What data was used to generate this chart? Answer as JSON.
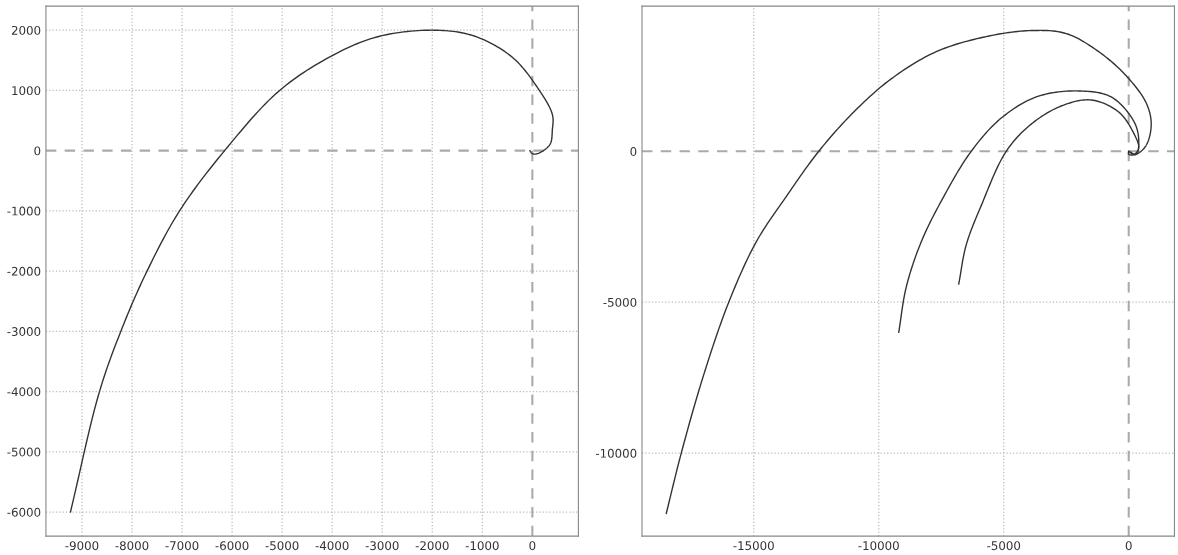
{
  "chart_data": [
    {
      "type": "line",
      "xlim": [
        -9720,
        920
      ],
      "ylim": [
        -6400,
        2400
      ],
      "xticks": [
        -9000,
        -8000,
        -7000,
        -6000,
        -5000,
        -4000,
        -3000,
        -2000,
        -1000,
        0
      ],
      "yticks": [
        -6000,
        -5000,
        -4000,
        -3000,
        -2000,
        -1000,
        0,
        1000,
        2000
      ],
      "grid": true,
      "series": [
        {
          "color": "#333333",
          "x": [
            -9230,
            -8650,
            -8200,
            -7700,
            -7050,
            -6150,
            -5050,
            -3950,
            -3050,
            -1950,
            -1150,
            -400,
            100,
            400,
            400,
            350,
            100,
            0,
            -50
          ],
          "values": [
            -6000,
            -4000,
            -2950,
            -2000,
            -1000,
            0,
            1000,
            1600,
            1900,
            2000,
            1900,
            1550,
            1050,
            600,
            350,
            100,
            -50,
            -50,
            0
          ]
        }
      ]
    },
    {
      "type": "line",
      "xlim": [
        -19470,
        1830
      ],
      "ylim": [
        -12750,
        4810
      ],
      "xticks": [
        -15000,
        -10000,
        -5000,
        0
      ],
      "yticks": [
        -10000,
        -5000,
        0
      ],
      "grid": true,
      "series": [
        {
          "color": "#333333",
          "x": [
            -18500,
            -17900,
            -17000,
            -16000,
            -14900,
            -13700,
            -12400,
            -11000,
            -9500,
            -7700,
            -5700,
            -3900,
            -2500,
            -1200,
            -100,
            700,
            900,
            700,
            300,
            0,
            0
          ],
          "values": [
            -12000,
            -10000,
            -7400,
            -5000,
            -3000,
            -1500,
            0,
            1300,
            2400,
            3300,
            3800,
            4000,
            3900,
            3300,
            2500,
            1600,
            900,
            200,
            -100,
            -100,
            0
          ]
        },
        {
          "color": "#333333",
          "x": [
            -9200,
            -8900,
            -8300,
            -7400,
            -6300,
            -5100,
            -3700,
            -2100,
            -700,
            200,
            400,
            300,
            0
          ],
          "values": [
            -6000,
            -4500,
            -3000,
            -1500,
            0,
            1100,
            1800,
            2000,
            1800,
            1000,
            400,
            -100,
            0
          ]
        },
        {
          "color": "#333333",
          "x": [
            -6800,
            -6500,
            -5900,
            -4900,
            -3900,
            -2700,
            -1500,
            -400,
            200,
            400,
            200,
            0
          ],
          "values": [
            -4400,
            -3100,
            -1800,
            0,
            900,
            1500,
            1700,
            1300,
            600,
            100,
            -100,
            0
          ]
        }
      ]
    }
  ]
}
